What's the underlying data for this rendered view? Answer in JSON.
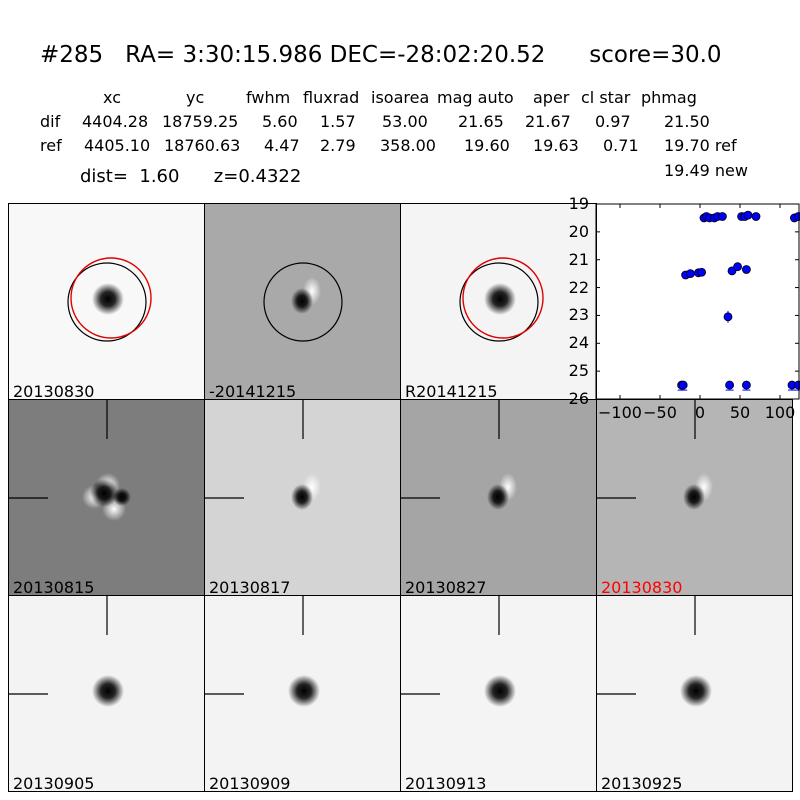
{
  "header": {
    "title": "#285   RA= 3:30:15.986 DEC=-28:02:20.52      score=30.0",
    "columns": [
      "xc",
      "yc",
      "fwhm",
      "fluxrad",
      "isoarea",
      "mag auto",
      "aper",
      "cl star",
      "phmag"
    ],
    "rows": [
      {
        "name": "dif",
        "values": [
          "4404.28",
          "18759.25",
          "5.60",
          "1.57",
          "53.00",
          "21.65",
          "21.67",
          "0.97",
          "21.50"
        ]
      },
      {
        "name": "ref",
        "values": [
          "4405.10",
          "18760.63",
          "4.47",
          "2.79",
          "358.00",
          "19.60",
          "19.63",
          "0.71",
          "19.70 ref"
        ]
      }
    ],
    "dist_label": "dist=  1.60      z=0.4322",
    "new_mag": "19.49 new"
  },
  "panels": [
    {
      "label": "20130830",
      "label_color": "#000000",
      "bg": "#f8f8f8",
      "blob": "dark",
      "circles": [
        "black",
        "red"
      ]
    },
    {
      "label": "-20141215",
      "label_color": "#000000",
      "bg": "#a9a9a9",
      "blob": "dipole",
      "circles": [
        "black"
      ]
    },
    {
      "label": "R20141215",
      "label_color": "#000000",
      "bg": "#f4f4f4",
      "blob": "dark",
      "circles": [
        "black",
        "red"
      ]
    },
    {
      "label": "20130815",
      "label_color": "#000000",
      "bg": "#7d7d7d",
      "blob": "ring",
      "circles": [],
      "crosshair": true
    },
    {
      "label": "20130817",
      "label_color": "#000000",
      "bg": "#d4d4d4",
      "blob": "dipole",
      "circles": [],
      "crosshair": true
    },
    {
      "label": "20130827",
      "label_color": "#000000",
      "bg": "#a5a5a5",
      "blob": "dipole",
      "circles": [],
      "crosshair": true
    },
    {
      "label": "20130830",
      "label_color": "#ff0000",
      "bg": "#b5b5b5",
      "blob": "dipole",
      "circles": [],
      "crosshair": true
    },
    {
      "label": "20130905",
      "label_color": "#000000",
      "bg": "#f3f3f3",
      "blob": "dark",
      "circles": [],
      "crosshair": true
    },
    {
      "label": "20130909",
      "label_color": "#000000",
      "bg": "#f3f3f3",
      "blob": "dark",
      "circles": [],
      "crosshair": true
    },
    {
      "label": "20130913",
      "label_color": "#000000",
      "bg": "#f4f4f4",
      "blob": "dark",
      "circles": [],
      "crosshair": true
    },
    {
      "label": "20130925",
      "label_color": "#000000",
      "bg": "#f3f3f3",
      "blob": "dark",
      "circles": [],
      "crosshair": true
    }
  ],
  "chart_data": {
    "type": "scatter",
    "xlim": [
      -130,
      125
    ],
    "ylim": [
      26,
      19
    ],
    "x_ticks": [
      -100,
      -50,
      0,
      50,
      100
    ],
    "x_tick_labels": [
      "−100",
      "−50",
      "0",
      "50",
      "100"
    ],
    "y_ticks": [
      19,
      20,
      21,
      22,
      23,
      24,
      25,
      26
    ],
    "y_tick_labels": [
      "19",
      "20",
      "21",
      "22",
      "23",
      "24",
      "25",
      "26"
    ],
    "color": "#0000ff",
    "series": [
      {
        "x": [
          -18,
          -12,
          -2,
          2,
          5,
          8,
          12,
          18,
          22,
          28,
          40,
          47,
          52,
          56,
          58,
          60,
          70,
          118,
          123,
          -23,
          -21,
          37,
          58,
          115,
          123,
          35
        ],
        "y": [
          21.55,
          21.5,
          21.47,
          21.45,
          19.5,
          19.45,
          19.5,
          19.5,
          19.45,
          19.45,
          21.4,
          21.25,
          19.45,
          19.45,
          21.35,
          19.4,
          19.45,
          19.5,
          19.45,
          25.5,
          25.5,
          25.5,
          25.5,
          25.5,
          25.5,
          23.05
        ]
      }
    ]
  }
}
